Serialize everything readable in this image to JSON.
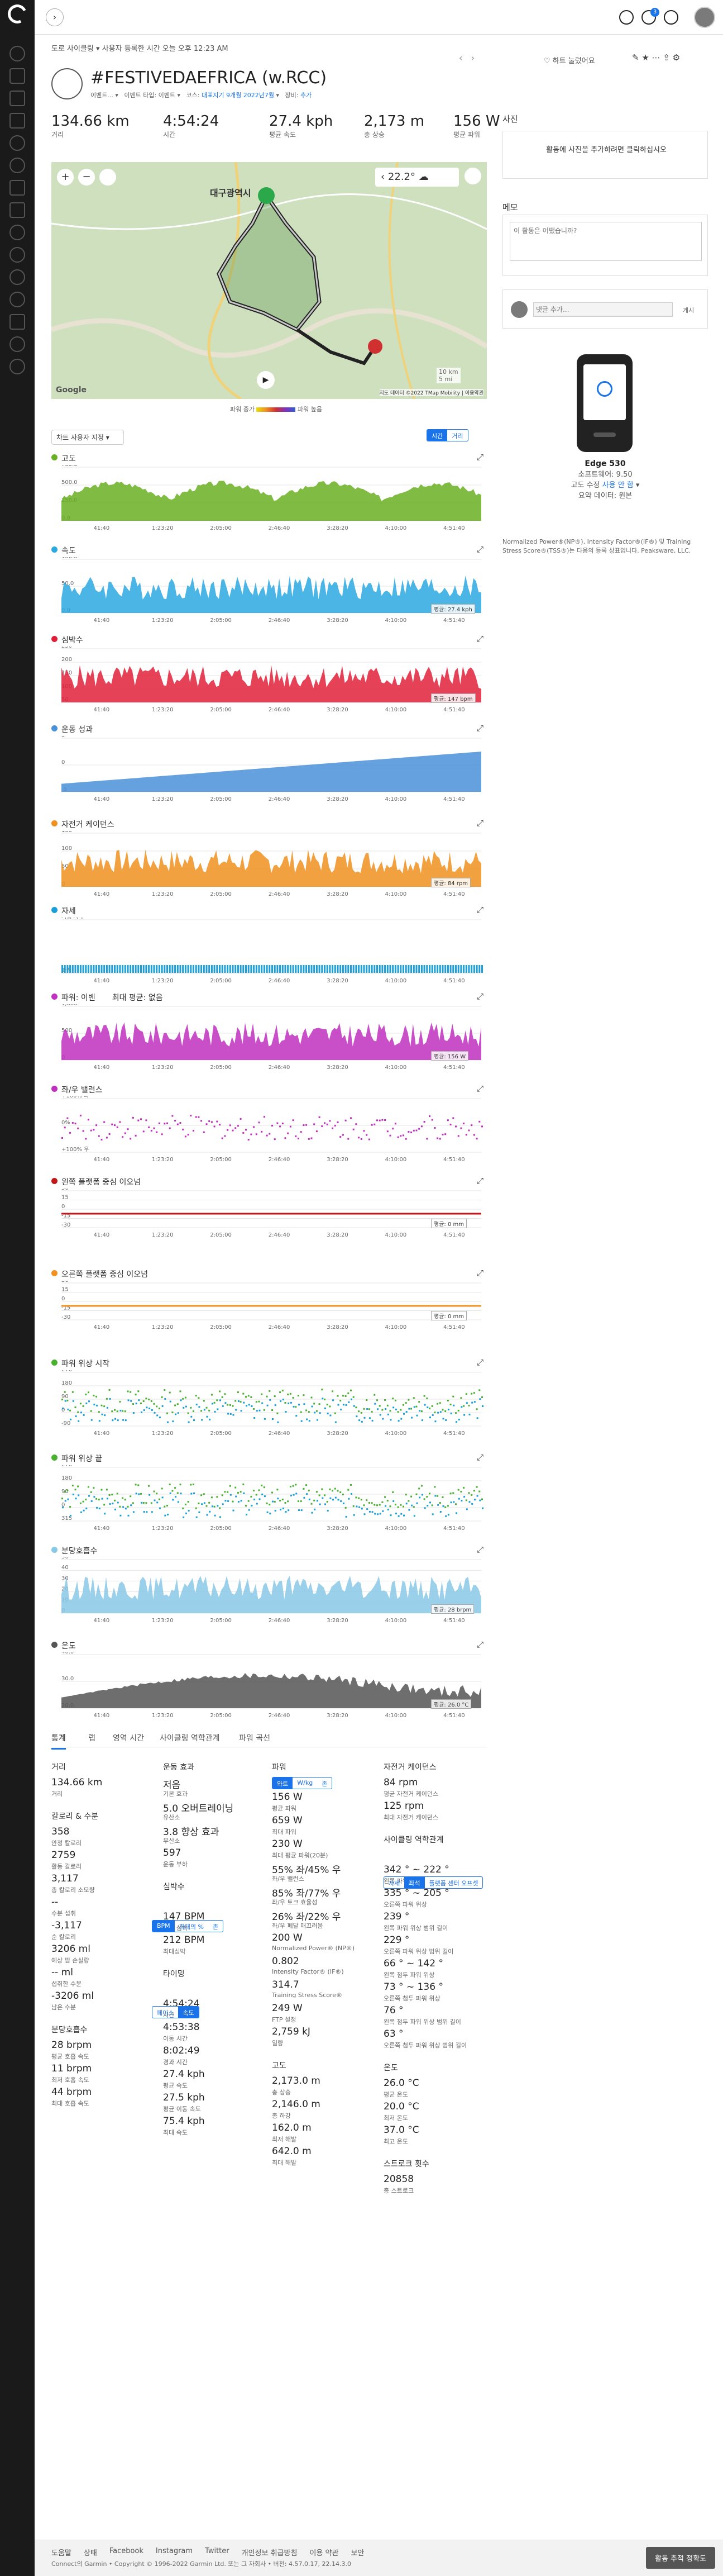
{
  "header": {
    "breadcrumb_parts": [
      "도로 사이클링",
      "사용자",
      "등록한 시간 오늘 오후 12:23 AM"
    ],
    "breadcrumb_mid": "으로",
    "notifications_count": "3",
    "share_label": "하트 눌렀어요"
  },
  "activity": {
    "title": "#FESTIVEDAEFRICA (w.RCC)",
    "meta": {
      "owner": "이벤트...",
      "type": "이벤트 타입: 이벤트",
      "course": "코스:",
      "course_link": "대표지기 9개월 2022년7월",
      "gear": "장비:",
      "gear_link": "추가"
    }
  },
  "summary": [
    {
      "value": "134.66 km",
      "label": "거리"
    },
    {
      "value": "4:54:24",
      "label": "시간"
    },
    {
      "value": "27.4 kph",
      "label": "평균 속도"
    },
    {
      "value": "2,173 m",
      "label": "총 상승"
    },
    {
      "value": "156 W",
      "label": "평균 파워"
    }
  ],
  "map": {
    "city_label": "대구광역시",
    "temp": "22.2°",
    "attribution": "지도 데이터 ©2022 TMap Mobility | 이용약관",
    "legend_low": "파워 증가",
    "legend_high": "파워 높음",
    "scale": "10 km",
    "scale2": "5 mi",
    "google": "Google"
  },
  "chart_controls": {
    "dropdown": "차트 사용자 지정",
    "time": "시간",
    "distance": "거리"
  },
  "right": {
    "photos_title": "사진",
    "photos_cta": "활동에 사진을 추가하려면 클릭하십시오",
    "notes_title": "메모",
    "notes_placeholder": "이 활동은 어땠습니까?",
    "comment_placeholder": "댓글 추가...",
    "comment_btn": "게시",
    "device_name": "Edge 530",
    "software": "소프트웨어: 9.50",
    "elevation": "고도 수정",
    "elev_state": "사용 안 함",
    "summary_data": "요약 데이터: 원본",
    "device_screen": " ",
    "footnote": "Normalized Power®(NP®), Intensity Factor®(IF®) 및 Training Stress Score®(TSS®)는 다음의 등록 상표입니다. Peaksware, LLC.",
    "footnote_link": "Peaksware, LLC."
  },
  "time_ticks": [
    "41:40",
    "1:23:20",
    "2:05:00",
    "2:46:40",
    "3:28:20",
    "4:10:00",
    "4:51:40"
  ],
  "charts": [
    {
      "id": "elev",
      "title": "고도",
      "color": "#6ab023",
      "y_ticks": [
        "750.0",
        "500.0",
        "250.0",
        "0.0"
      ],
      "badge": ""
    },
    {
      "id": "speed",
      "title": "속도",
      "color": "#2ca8e0",
      "y_ticks": [
        "100.0",
        "50.0",
        "0.0"
      ],
      "badge": "평균: 27.4 kph"
    },
    {
      "id": "hr",
      "title": "심박수",
      "color": "#e0203a",
      "y_ticks": [
        "250",
        "200",
        "150",
        "100",
        "50"
      ],
      "badge": "평균: 147 bpm"
    },
    {
      "id": "effect",
      "title": "운동 성과",
      "color": "#4a90d9",
      "y_ticks": [
        "5",
        "0",
        "-5"
      ],
      "badge": ""
    },
    {
      "id": "cad",
      "title": "자전거 케이던스",
      "color": "#f09020",
      "y_ticks": [
        "150",
        "100",
        "50",
        "0"
      ],
      "badge": "평균: 84 rpm"
    },
    {
      "id": "posture",
      "title": "자세",
      "color": "#1a9fd8",
      "y_ticks": [
        "기립 자세",
        "좌석"
      ],
      "badge": ""
    },
    {
      "id": "power",
      "title": "파워: 이벤",
      "color": "#c030c0",
      "y_ticks": [
        "1,000",
        "500",
        "0"
      ],
      "badge": "평균: 156 W",
      "extra": "최대 평균: 없음"
    },
    {
      "id": "balance",
      "title": "좌/우 밸런스",
      "color": "#c030c0",
      "y_ticks": [
        "+100% 좌",
        "0%",
        "+100% 우"
      ],
      "badge": ""
    },
    {
      "id": "lpco",
      "title": "왼쪽 플랫폼 중심 이오넘",
      "color": "#c01818",
      "y_ticks": [
        "30",
        "15",
        "0",
        "-15",
        "-30"
      ],
      "badge": "평균: 0 mm"
    },
    {
      "id": "rpco",
      "title": "오른쪽 플랫폼 중심 이오넘",
      "color": "#f09020",
      "y_ticks": [
        "30",
        "15",
        "0",
        "-15",
        "-30"
      ],
      "badge": "평균: 0 mm"
    },
    {
      "id": "ppstart",
      "title": "파워 위상 시작",
      "color": "#4ab030",
      "y_ticks": [
        "270",
        "180",
        "90",
        "0",
        "-90"
      ],
      "badge": ""
    },
    {
      "id": "ppend",
      "title": "파워 위상 끝",
      "color": "#4ab030",
      "y_ticks": [
        "270",
        "180",
        "90",
        "0",
        "315"
      ],
      "badge": ""
    },
    {
      "id": "resp",
      "title": "분당호흡수",
      "color": "#8ac8e8",
      "y_ticks": [
        "50",
        "40",
        "30",
        "20",
        "10",
        "0"
      ],
      "badge": "평균: 28 brpm"
    },
    {
      "id": "temp",
      "title": "온도",
      "color": "#555555",
      "y_ticks": [
        "40.0",
        "30.0",
        "20.0"
      ],
      "badge": "평균: 26.0 °C"
    }
  ],
  "stats_tabs": [
    "통계",
    "랩",
    "영역 시간",
    "사이클링 역학관계",
    "파워 곡선"
  ],
  "stats": {
    "c1": [
      {
        "h": "거리"
      },
      {
        "v": "134.66 km",
        "l": "거리"
      },
      {
        "h": "칼로리 & 수분"
      },
      {
        "v": "358",
        "l": "안정 칼로리"
      },
      {
        "v": "2759",
        "l": "활동 칼로리"
      },
      {
        "v": "3,117",
        "l": "총 칼로리 소모량"
      },
      {
        "v": "--",
        "l": "수분 섭취"
      },
      {
        "v": "-3,117",
        "l": "순 칼로리"
      },
      {
        "v": "3206 ml",
        "l": "예상 땀 손실량"
      },
      {
        "v": "-- ml",
        "l": "섭취한 수분"
      },
      {
        "v": "-3206 ml",
        "l": "남은 수분"
      },
      {
        "h": "분당호흡수"
      },
      {
        "v": "28 brpm",
        "l": "평균 호흡 속도"
      },
      {
        "v": "11 brpm",
        "l": "최저 호흡 속도"
      },
      {
        "v": "44 brpm",
        "l": "최대 호흡 속도"
      }
    ],
    "c2": [
      {
        "h": "운동 효과"
      },
      {
        "v": "저음",
        "l": "기본 효과"
      },
      {
        "v": "5.0 오버트레이닝",
        "l": "유산소"
      },
      {
        "v": "3.8 향상 효과",
        "l": "무산소"
      },
      {
        "v": "597",
        "l": "운동 부하"
      },
      {
        "h": "심박수"
      },
      {
        "v": "147 BPM",
        "l": "평균 심박"
      },
      {
        "v": "212 BPM",
        "l": "최대심박"
      },
      {
        "h": "타이밍"
      },
      {
        "v": "4:54:24",
        "l": "시간"
      },
      {
        "v": "4:53:38",
        "l": "이동 시간"
      },
      {
        "v": "8:02:49",
        "l": "경과 시간"
      },
      {
        "v": "27.4 kph",
        "l": "평균 속도"
      },
      {
        "v": "27.5 kph",
        "l": "평균 이동 속도"
      },
      {
        "v": "75.4 kph",
        "l": "최대 속도"
      }
    ],
    "c3": [
      {
        "h": "파워"
      },
      {
        "v": "156 W",
        "l": "평균 파워"
      },
      {
        "v": "659 W",
        "l": "최대 파워"
      },
      {
        "v": "230 W",
        "l": "최대 평균 파워(20분)"
      },
      {
        "v": "55% 좌/45% 우",
        "l": "좌/우 밸런스"
      },
      {
        "v": "85% 좌/77% 우",
        "l": "좌/우 토크 효율성"
      },
      {
        "v": "26% 좌/22% 우",
        "l": "좌/우 페달 매끄러움"
      },
      {
        "v": "200 W",
        "l": "Normalized Power® (NP®)"
      },
      {
        "v": "0.802",
        "l": "Intensity Factor® (IF®)"
      },
      {
        "v": "314.7",
        "l": "Training Stress Score®"
      },
      {
        "v": "249 W",
        "l": "FTP 설정"
      },
      {
        "v": "2,759 kJ",
        "l": "일량"
      },
      {
        "h": "고도"
      },
      {
        "v": "2,173.0 m",
        "l": "총 상승"
      },
      {
        "v": "2,146.0 m",
        "l": "총 하강"
      },
      {
        "v": "162.0 m",
        "l": "최저 해발"
      },
      {
        "v": "642.0 m",
        "l": "최대 해발"
      }
    ],
    "c4": [
      {
        "h": "자전거 케이던스"
      },
      {
        "v": "84 rpm",
        "l": "평균 자전거 케이던스"
      },
      {
        "v": "125 rpm",
        "l": "최대 자전거 케이던스"
      },
      {
        "h": "사이클링 역학관계"
      },
      {
        "v": "342 ° ~ 222 °",
        "l": "왼쪽 파워 위상"
      },
      {
        "v": "335 ° ~ 205 °",
        "l": "오른쪽 파워 위상"
      },
      {
        "v": "239 °",
        "l": "왼쪽 파워 위상 범위 길이"
      },
      {
        "v": "229 °",
        "l": "오른쪽 파워 위상 범위 길이"
      },
      {
        "v": "66 ° ~ 142 °",
        "l": "왼쪽 첨두 파워 위상"
      },
      {
        "v": "73 ° ~ 136 °",
        "l": "오른쪽 첨두 파워 위상"
      },
      {
        "v": "76 °",
        "l": "왼쪽 첨두 파워 위상 범위 길이"
      },
      {
        "v": "63 °",
        "l": "오른쪽 첨두 파워 위상 범위 길이"
      },
      {
        "h": "온도"
      },
      {
        "v": "26.0 °C",
        "l": "평균 온도"
      },
      {
        "v": "20.0 °C",
        "l": "최저 온도"
      },
      {
        "v": "37.0 °C",
        "l": "최고 온도"
      },
      {
        "h": "스트로크 횟수"
      },
      {
        "v": "20858",
        "l": "총 스트로크"
      }
    ],
    "seg_hr": [
      "BPM",
      "최대의 %",
      "존"
    ],
    "seg_timing": [
      "페이스",
      "속도"
    ],
    "seg_power": [
      "와트",
      "W/kg",
      "존"
    ],
    "seg_dyn": [
      "자세",
      "좌석",
      "플랫폼 센터 오프셋"
    ]
  },
  "footer": {
    "links": [
      "도움말",
      "상태",
      "Facebook",
      "Instagram",
      "Twitter",
      "개인정보 취급방침",
      "이용 약관",
      "보안"
    ],
    "copyright": "Connect의 Garmin • Copyright © 1996-2022 Garmin Ltd. 또는 그 자회사 • 버전: 4.57.0.17, 22.14.3.0",
    "feedback": "활동 추적 정확도"
  }
}
